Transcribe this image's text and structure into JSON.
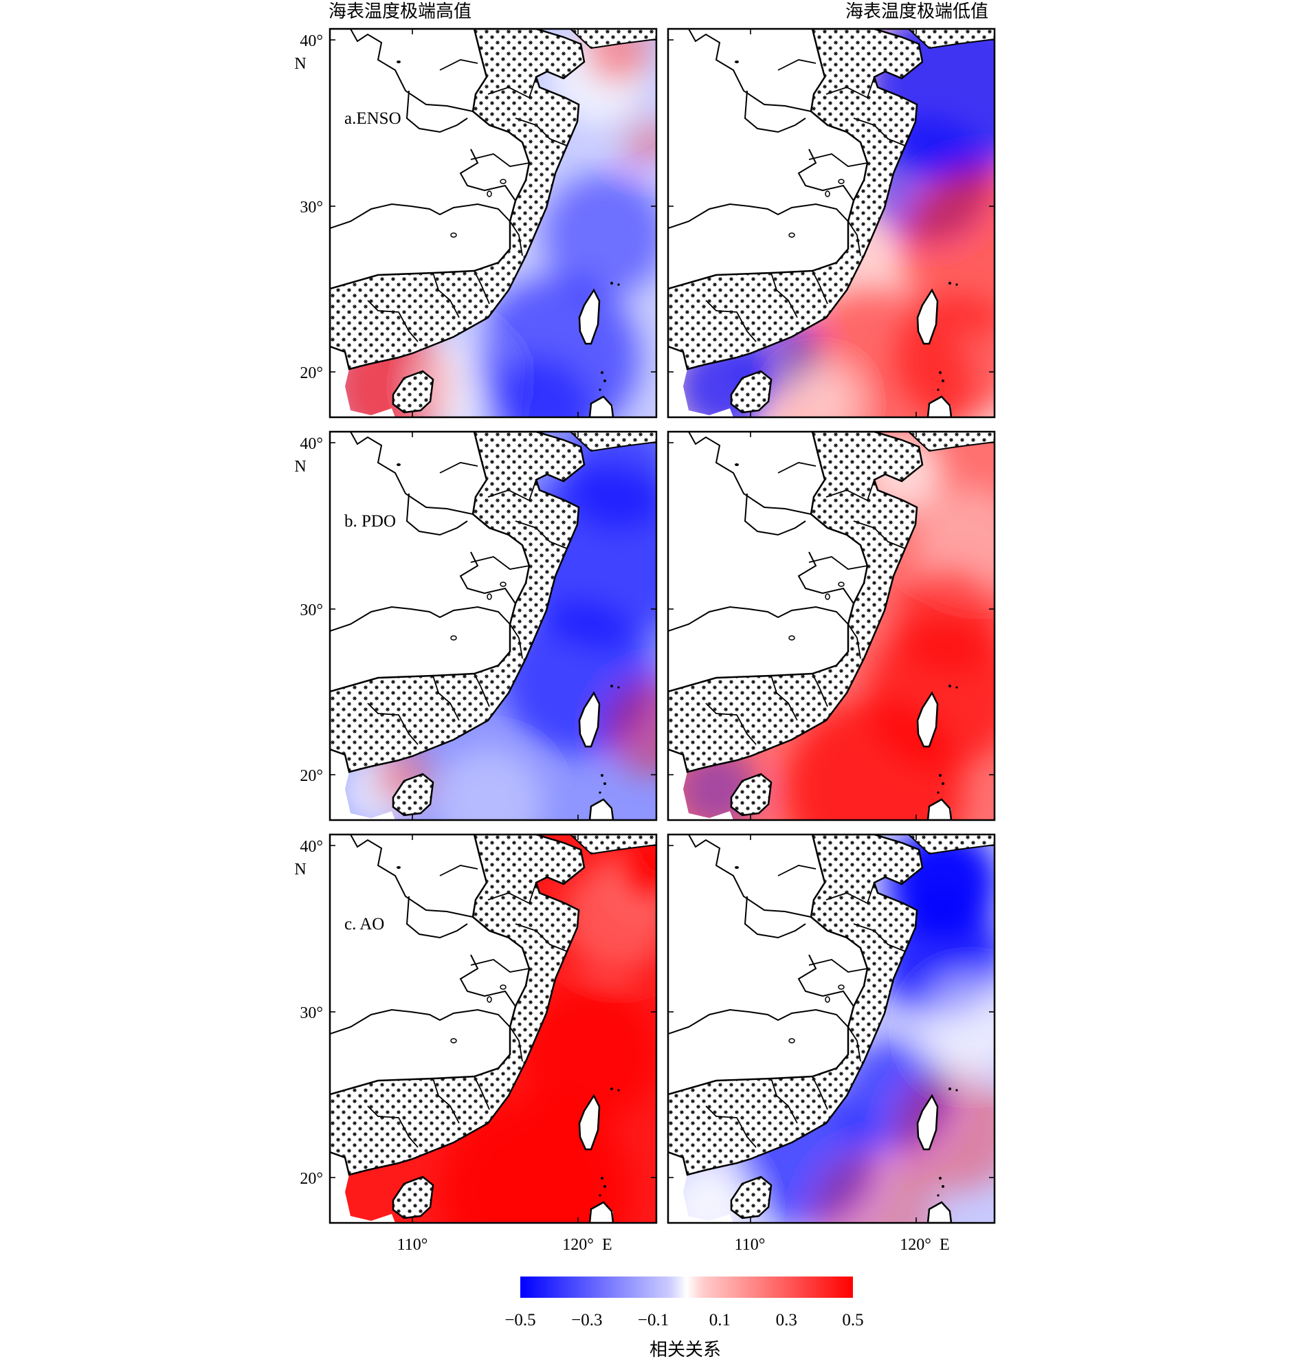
{
  "columns": [
    {
      "title": "海表温度极端高值"
    },
    {
      "title": "海表温度极端低值"
    }
  ],
  "rows": [
    {
      "label": "a.ENSO",
      "high_pattern": "mixed-negative",
      "low_pattern": "dipole"
    },
    {
      "label": "b. PDO",
      "high_pattern": "negative",
      "low_pattern": "positive"
    },
    {
      "label": "c. AO",
      "high_pattern": "strong-positive",
      "low_pattern": "strong-negative"
    }
  ],
  "axes": {
    "lat_ticks": [
      "40°",
      "30°",
      "20°"
    ],
    "lat_unit": "N",
    "lon_ticks": [
      "110°",
      "120°"
    ],
    "lon_unit": "E"
  },
  "colorbar": {
    "ticks": [
      "−0.5",
      "−0.3",
      "−0.1",
      "0.1",
      "0.3",
      "0.5"
    ],
    "label": "相关关系",
    "min": -0.5,
    "max": 0.5,
    "colors": {
      "negative": "#0000ff",
      "neutral": "#ffffff",
      "positive": "#ff0000"
    }
  },
  "colors": {
    "land_hatch": "#000000",
    "coast": "#000000",
    "frame": "#000000"
  }
}
